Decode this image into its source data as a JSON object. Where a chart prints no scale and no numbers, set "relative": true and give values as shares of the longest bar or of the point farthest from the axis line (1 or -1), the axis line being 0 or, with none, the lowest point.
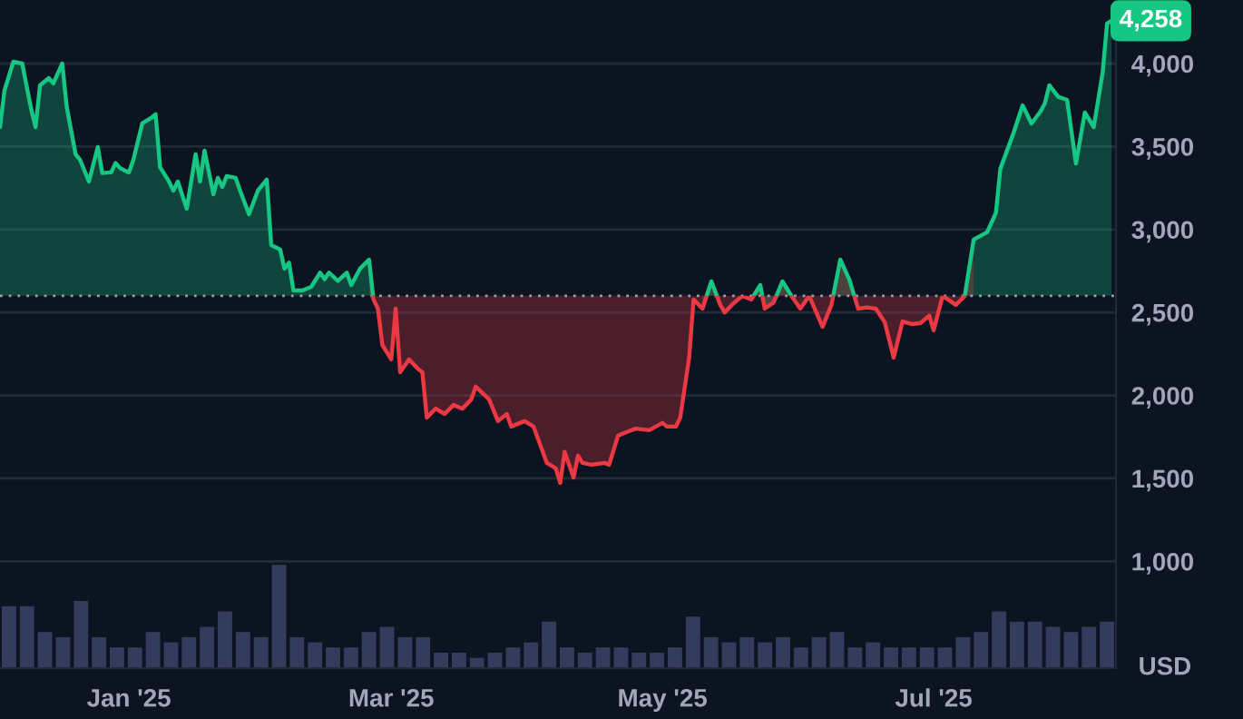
{
  "chart_data": [
    {
      "type": "area",
      "x": [
        "2024-12-03",
        "2024-12-04",
        "2024-12-06",
        "2024-12-08",
        "2024-12-10",
        "2024-12-11",
        "2024-12-12",
        "2024-12-14",
        "2024-12-15",
        "2024-12-17",
        "2024-12-18",
        "2024-12-20",
        "2024-12-21",
        "2024-12-23",
        "2024-12-25",
        "2024-12-26",
        "2024-12-28",
        "2024-12-29",
        "2024-12-30",
        "2025-01-01",
        "2025-01-02",
        "2025-01-04",
        "2025-01-06",
        "2025-01-07",
        "2025-01-08",
        "2025-01-10",
        "2025-01-11",
        "2025-01-12",
        "2025-01-14",
        "2025-01-16",
        "2025-01-17",
        "2025-01-18",
        "2025-01-20",
        "2025-01-21",
        "2025-01-22",
        "2025-01-23",
        "2025-01-25",
        "2025-01-26",
        "2025-01-28",
        "2025-01-30",
        "2025-02-01",
        "2025-02-02",
        "2025-02-04",
        "2025-02-05",
        "2025-02-06",
        "2025-02-07",
        "2025-02-09",
        "2025-02-11",
        "2025-02-13",
        "2025-02-14",
        "2025-02-15",
        "2025-02-17",
        "2025-02-19",
        "2025-02-20",
        "2025-02-22",
        "2025-02-24",
        "2025-02-25",
        "2025-02-26",
        "2025-02-27",
        "2025-03-01",
        "2025-03-02",
        "2025-03-03",
        "2025-03-05",
        "2025-03-07",
        "2025-03-08",
        "2025-03-09",
        "2025-03-11",
        "2025-03-13",
        "2025-03-15",
        "2025-03-17",
        "2025-03-19",
        "2025-03-20",
        "2025-03-23",
        "2025-03-25",
        "2025-03-27",
        "2025-03-28",
        "2025-03-31",
        "2025-04-02",
        "2025-04-05",
        "2025-04-07",
        "2025-04-08",
        "2025-04-09",
        "2025-04-11",
        "2025-04-12",
        "2025-04-13",
        "2025-04-15",
        "2025-04-18",
        "2025-04-19",
        "2025-04-21",
        "2025-04-23",
        "2025-04-25",
        "2025-04-28",
        "2025-05-01",
        "2025-05-02",
        "2025-05-04",
        "2025-05-05",
        "2025-05-07",
        "2025-05-08",
        "2025-05-10",
        "2025-05-12",
        "2025-05-14",
        "2025-05-15",
        "2025-05-17",
        "2025-05-19",
        "2025-05-21",
        "2025-05-23",
        "2025-05-24",
        "2025-05-26",
        "2025-05-28",
        "2025-05-30",
        "2025-06-01",
        "2025-06-03",
        "2025-06-06",
        "2025-06-08",
        "2025-06-10",
        "2025-06-12",
        "2025-06-14",
        "2025-06-16",
        "2025-06-18",
        "2025-06-20",
        "2025-06-22",
        "2025-06-24",
        "2025-06-26",
        "2025-06-28",
        "2025-06-30",
        "2025-07-01",
        "2025-07-03",
        "2025-07-06",
        "2025-07-08",
        "2025-07-10",
        "2025-07-13",
        "2025-07-15",
        "2025-07-16",
        "2025-07-19",
        "2025-07-21",
        "2025-07-23",
        "2025-07-25",
        "2025-07-26",
        "2025-07-27",
        "2025-07-29",
        "2025-07-31",
        "2025-08-02",
        "2025-08-04",
        "2025-08-06",
        "2025-08-08",
        "2025-08-09",
        "2025-08-10"
      ],
      "series": [
        {
          "color": "#16c784",
          "values": [
            3617,
            3836,
            4011,
            4000,
            3726,
            3617,
            3869,
            3912,
            3880,
            4000,
            3740,
            3453,
            3420,
            3289,
            3497,
            3340,
            3344,
            3400,
            3370,
            3344,
            3420,
            3639,
            3672,
            3694,
            3376,
            3289,
            3234,
            3289,
            3125,
            3453,
            3289,
            3475,
            3212,
            3311,
            3256,
            3322,
            3311,
            3234,
            3092,
            3234,
            3300,
            2906,
            2880,
            2764,
            2800,
            2632,
            2632,
            2654,
            2740,
            2700,
            2740,
            2690,
            2740,
            2665,
            2764,
            2818,
            2578,
            null,
            null,
            null,
            null,
            null,
            null,
            null,
            null,
            null,
            null,
            null,
            null,
            null,
            null,
            null,
            null,
            null,
            null,
            null,
            null,
            null,
            null,
            null,
            null,
            null,
            null,
            null,
            null,
            null,
            null,
            null,
            null,
            null,
            null,
            null,
            null,
            null,
            null,
            null,
            null,
            null,
            2523,
            2687,
            2545,
            null,
            null,
            null,
            2578,
            2665,
            2523,
            2560,
            2687,
            2600,
            null,
            null,
            null,
            2545,
            2818,
            2700,
            2523,
            null,
            null,
            null,
            null,
            null,
            null,
            null,
            null,
            null,
            null,
            null,
            2600,
            2939,
            2983,
            3100,
            3366,
            3584,
            3748,
            3639,
            3710,
            3759,
            3869,
            3800,
            3781,
            3398,
            3705,
            3617,
            3945,
            4241,
            4258
          ]
        },
        {
          "color": "#ea3943",
          "values": [
            null,
            null,
            null,
            null,
            null,
            null,
            null,
            null,
            null,
            null,
            null,
            null,
            null,
            null,
            null,
            null,
            null,
            null,
            null,
            null,
            null,
            null,
            null,
            null,
            null,
            null,
            null,
            null,
            null,
            null,
            null,
            null,
            null,
            null,
            null,
            null,
            null,
            null,
            null,
            null,
            null,
            null,
            null,
            null,
            null,
            null,
            null,
            null,
            null,
            null,
            null,
            null,
            null,
            null,
            null,
            2818,
            2578,
            2523,
            2304,
            2217,
            2523,
            2140,
            2217,
            2160,
            2140,
            1866,
            1920,
            1888,
            1942,
            1920,
            1976,
            2053,
            1976,
            1845,
            1888,
            1812,
            1845,
            1812,
            1593,
            1560,
            1473,
            1660,
            1505,
            1637,
            1593,
            1582,
            1593,
            1582,
            1757,
            1780,
            1800,
            1790,
            1834,
            1812,
            1812,
            1866,
            2228,
            2578,
            2523,
            2687,
            2545,
            2500,
            2556,
            2600,
            2578,
            2665,
            2523,
            2560,
            2687,
            2600,
            2523,
            2600,
            2413,
            2545,
            2818,
            2700,
            2523,
            2530,
            2523,
            2440,
            2228,
            2446,
            2430,
            2435,
            2480,
            2392,
            2600,
            2545,
            2600,
            2939,
            null,
            null,
            null,
            null,
            null,
            null,
            null,
            null,
            null,
            null,
            null,
            null,
            null,
            null,
            null,
            null,
            null
          ]
        }
      ],
      "xlim": [
        "2024-12-03",
        "2025-08-11"
      ],
      "xticks": [
        {
          "value": "2025-01-01",
          "label": "Jan '25"
        },
        {
          "value": "2025-03-01",
          "label": "Mar '25"
        },
        {
          "value": "2025-05-01",
          "label": "May '25"
        },
        {
          "value": "2025-07-01",
          "label": "Jul '25"
        }
      ],
      "ylim": [
        356,
        4383
      ],
      "yticks": [
        {
          "value": 1000,
          "label": "1,000"
        },
        {
          "value": 1500,
          "label": "1,500"
        },
        {
          "value": 2000,
          "label": "2,000"
        },
        {
          "value": 2500,
          "label": "2,500"
        },
        {
          "value": 3000,
          "label": "3,000"
        },
        {
          "value": 3500,
          "label": "3,500"
        },
        {
          "value": 4000,
          "label": "4,000"
        }
      ],
      "grid": "y",
      "ref_lines": [
        {
          "axis": "y",
          "value": 2600,
          "color": "#9aa0ab",
          "line_style": "dotted"
        }
      ],
      "annotations": [
        {
          "text": "4,258",
          "x": "2025-08-10",
          "y": 4258
        },
        "USD"
      ]
    },
    {
      "type": "bar",
      "relative": true,
      "color": "#343c5e",
      "categories": [
        null,
        null,
        null,
        null,
        null,
        null,
        null,
        null,
        null,
        null,
        null,
        null,
        null,
        null,
        null,
        null,
        null,
        null,
        null,
        null,
        null,
        null,
        null,
        null,
        null,
        null,
        null,
        null,
        null,
        null,
        null,
        null,
        null,
        null,
        null,
        null,
        null,
        null,
        null,
        null,
        null,
        null,
        null,
        null,
        null,
        null,
        null,
        null,
        null,
        null,
        null,
        null,
        null,
        null,
        null,
        null,
        null,
        null,
        null,
        null,
        null,
        null
      ],
      "values": [
        0.6,
        0.6,
        0.35,
        0.3,
        0.65,
        0.3,
        0.2,
        0.2,
        0.35,
        0.25,
        0.3,
        0.4,
        0.55,
        0.35,
        0.3,
        1,
        0.3,
        0.25,
        0.2,
        0.2,
        0.35,
        0.4,
        0.3,
        0.3,
        0.15,
        0.15,
        0.1,
        0.15,
        0.2,
        0.25,
        0.45,
        0.2,
        0.15,
        0.2,
        0.2,
        0.15,
        0.15,
        0.2,
        0.5,
        0.3,
        0.25,
        0.3,
        0.25,
        0.3,
        0.2,
        0.3,
        0.35,
        0.2,
        0.25,
        0.2,
        0.2,
        0.2,
        0.2,
        0.3,
        0.35,
        0.55,
        0.45,
        0.45,
        0.4,
        0.35,
        0.4,
        0.45
      ]
    }
  ]
}
